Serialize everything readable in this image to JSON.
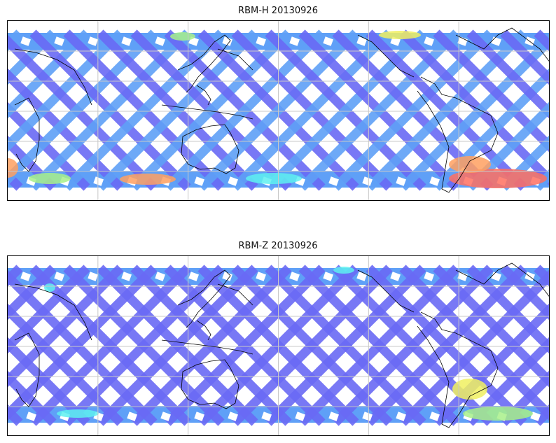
{
  "figure": {
    "panels": [
      {
        "title": "RBM-H 20130926",
        "hotspots": "strong"
      },
      {
        "title": "RBM-Z 20130926",
        "hotspots": "weak"
      }
    ],
    "colors": {
      "swath": "#6a6af5",
      "swath_light": "#5fa0f7",
      "cyan": "#5ef0f0",
      "green": "#a8f08a",
      "yellow": "#f0f060",
      "orange": "#ffa060",
      "red": "#ff7060",
      "grid": "#c8c8c8",
      "coast": "#000000"
    },
    "map": {
      "lon_range": [
        -180,
        180
      ],
      "lat_range": [
        -60,
        60
      ],
      "grid_step_deg": 60
    }
  }
}
